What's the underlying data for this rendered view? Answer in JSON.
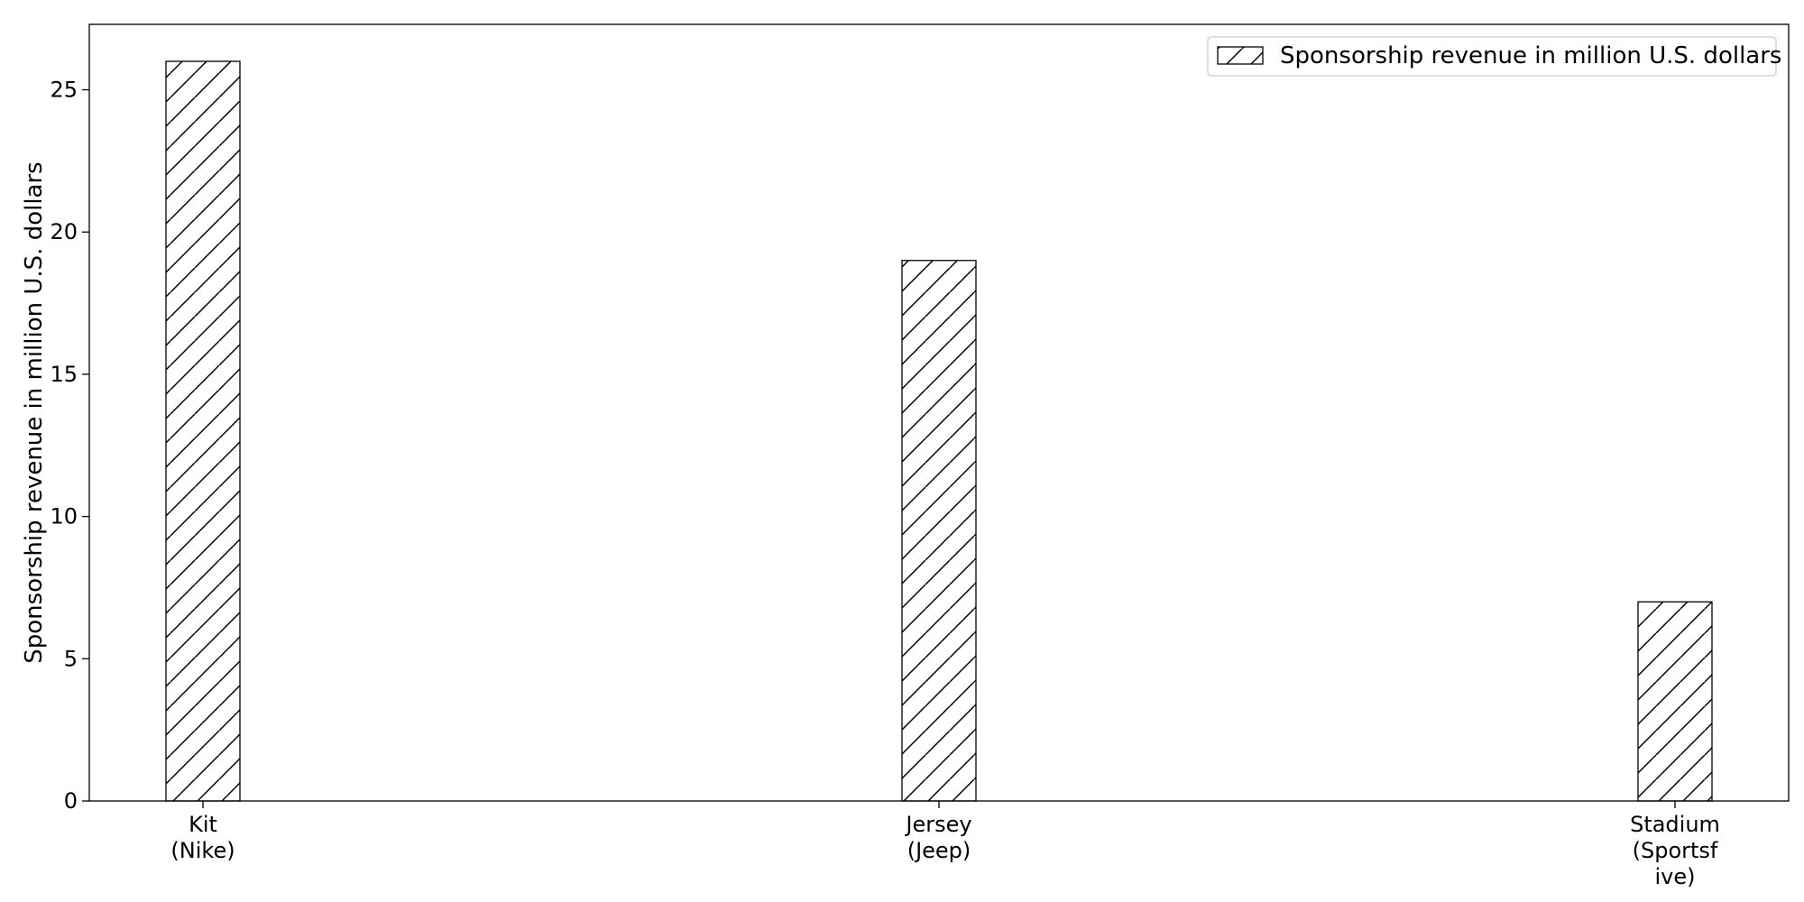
{
  "chart_data": {
    "type": "bar",
    "categories": [
      [
        "Kit",
        "(Nike)"
      ],
      [
        "Jersey",
        "(Jeep)"
      ],
      [
        "Stadium",
        "(Sportsf",
        "ive)"
      ]
    ],
    "series": [
      {
        "name": "Sponsorship revenue in million U.S. dollars",
        "values": [
          26,
          19,
          7
        ]
      }
    ],
    "title": "",
    "xlabel": "",
    "ylabel": "Sponsorship revenue in million U.S. dollars",
    "ylim": [
      0,
      27.3
    ],
    "yticks": [
      0,
      5,
      10,
      15,
      20,
      25
    ],
    "grid": false,
    "legend": "top-right",
    "bar_fill": "#ffffff",
    "bar_stroke": "#000000",
    "bar_pattern": "diagonal-hatch"
  }
}
